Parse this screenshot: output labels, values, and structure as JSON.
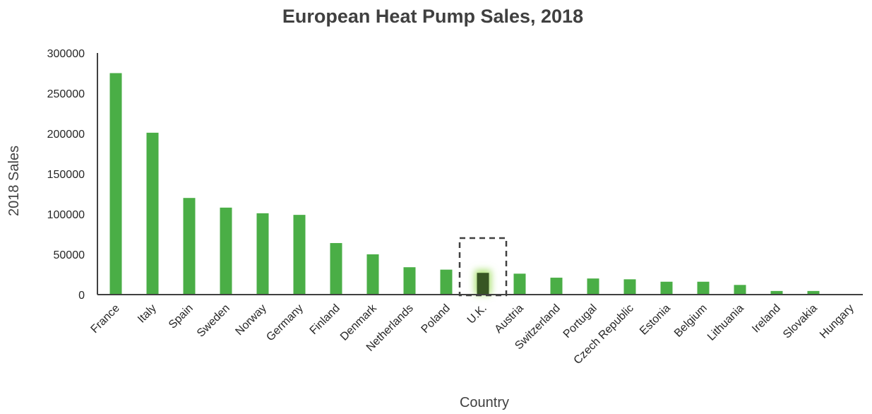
{
  "chart_data": {
    "type": "bar",
    "title": "European Heat Pump Sales, 2018",
    "xlabel": "Country",
    "ylabel": "2018 Sales",
    "categories": [
      "France",
      "Italy",
      "Spain",
      "Sweden",
      "Norway",
      "Germany",
      "Finland",
      "Denmark",
      "Netherlands",
      "Poland",
      "U.K.",
      "Austria",
      "Switzerland",
      "Portugal",
      "Czech Republic",
      "Estonia",
      "Belgium",
      "Lithuania",
      "Ireland",
      "Slovakia",
      "Hungary"
    ],
    "values": [
      275000,
      201000,
      120000,
      108000,
      101000,
      99000,
      64000,
      50000,
      34000,
      31000,
      27000,
      26000,
      21000,
      20000,
      19000,
      16000,
      16000,
      12000,
      4500,
      4500,
      300
    ],
    "ylim": [
      0,
      300000
    ],
    "yticks": [
      0,
      50000,
      100000,
      150000,
      200000,
      250000,
      300000
    ],
    "ytick_labels": [
      "0",
      "50000",
      "100000",
      "150000",
      "200000",
      "250000",
      "300000"
    ],
    "highlighted_category": "U.K.",
    "grid": false,
    "legend": "none",
    "colors": {
      "bar": "#4aae46",
      "highlight_bar": "#375623",
      "highlight_glow": "#a8e070",
      "highlight_box": "#404040",
      "axis": "#404040",
      "text": "#404040"
    }
  }
}
